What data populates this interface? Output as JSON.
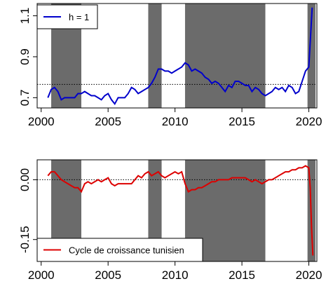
{
  "chart_data": [
    {
      "type": "line",
      "title": "",
      "xlabel": "",
      "ylabel": "",
      "xlim": [
        1999.7,
        2020.6
      ],
      "ylim": [
        0.65,
        1.16
      ],
      "x_ticks": [
        "2000",
        "2005",
        "2010",
        "2015",
        "2020"
      ],
      "x_tick_values": [
        2000,
        2005,
        2010,
        2015,
        2020
      ],
      "y_ticks": [
        "0.7",
        "0.9",
        "1.1"
      ],
      "y_tick_values": [
        0.7,
        0.9,
        1.1
      ],
      "reference_line": 0.765,
      "recession_bands": [
        [
          2000.75,
          2003.0
        ],
        [
          2008.0,
          2009.0
        ],
        [
          2010.75,
          2016.75
        ],
        [
          2019.9,
          2020.5
        ]
      ],
      "legend": {
        "position": "top-left",
        "entries": [
          "h = 1"
        ]
      },
      "colors": {
        "line": "#0000cc",
        "band": "#6b6b6b"
      },
      "series": [
        {
          "name": "h = 1",
          "x": [
            2000.5,
            2000.75,
            2001.0,
            2001.25,
            2001.5,
            2001.75,
            2002.0,
            2002.25,
            2002.5,
            2002.75,
            2003.0,
            2003.25,
            2003.5,
            2003.75,
            2004.0,
            2004.25,
            2004.5,
            2004.75,
            2005.0,
            2005.25,
            2005.5,
            2005.75,
            2006.0,
            2006.25,
            2006.5,
            2006.75,
            2007.0,
            2007.25,
            2007.5,
            2007.75,
            2008.0,
            2008.25,
            2008.5,
            2008.75,
            2009.0,
            2009.25,
            2009.5,
            2009.75,
            2010.0,
            2010.25,
            2010.5,
            2010.75,
            2011.0,
            2011.25,
            2011.5,
            2011.75,
            2012.0,
            2012.25,
            2012.5,
            2012.75,
            2013.0,
            2013.25,
            2013.5,
            2013.75,
            2014.0,
            2014.25,
            2014.5,
            2014.75,
            2015.0,
            2015.25,
            2015.5,
            2015.75,
            2016.0,
            2016.25,
            2016.5,
            2016.75,
            2017.0,
            2017.25,
            2017.5,
            2017.75,
            2018.0,
            2018.25,
            2018.5,
            2018.75,
            2019.0,
            2019.25,
            2019.5,
            2019.75,
            2020.0,
            2020.25
          ],
          "y": [
            0.7,
            0.74,
            0.75,
            0.73,
            0.69,
            0.7,
            0.7,
            0.7,
            0.7,
            0.72,
            0.72,
            0.73,
            0.72,
            0.71,
            0.71,
            0.7,
            0.69,
            0.71,
            0.72,
            0.69,
            0.67,
            0.7,
            0.7,
            0.7,
            0.72,
            0.75,
            0.74,
            0.72,
            0.73,
            0.74,
            0.75,
            0.77,
            0.8,
            0.84,
            0.84,
            0.83,
            0.83,
            0.82,
            0.83,
            0.84,
            0.85,
            0.87,
            0.86,
            0.83,
            0.84,
            0.83,
            0.82,
            0.8,
            0.79,
            0.77,
            0.78,
            0.77,
            0.75,
            0.73,
            0.76,
            0.75,
            0.78,
            0.78,
            0.77,
            0.76,
            0.76,
            0.73,
            0.75,
            0.74,
            0.72,
            0.71,
            0.72,
            0.73,
            0.75,
            0.74,
            0.75,
            0.73,
            0.76,
            0.75,
            0.72,
            0.73,
            0.78,
            0.83,
            0.85,
            1.14
          ]
        }
      ]
    },
    {
      "type": "line",
      "title": "",
      "xlabel": "",
      "ylabel": "",
      "xlim": [
        1999.7,
        2020.6
      ],
      "ylim": [
        -0.205,
        0.05
      ],
      "x_ticks": [
        "2000",
        "2005",
        "2010",
        "2015",
        "2020"
      ],
      "x_tick_values": [
        2000,
        2005,
        2010,
        2015,
        2020
      ],
      "y_ticks": [
        "-0.15",
        "0.00"
      ],
      "y_tick_values": [
        -0.15,
        0.0
      ],
      "reference_line": 0.0,
      "recession_bands": [
        [
          2000.75,
          2003.0
        ],
        [
          2008.0,
          2009.0
        ],
        [
          2010.75,
          2016.75
        ],
        [
          2019.9,
          2020.5
        ]
      ],
      "legend": {
        "position": "bottom-left",
        "entries": [
          "Cycle de croissance tunisien"
        ]
      },
      "colors": {
        "line": "#dd0000",
        "band": "#6b6b6b"
      },
      "series": [
        {
          "name": "Cycle de croissance tunisien",
          "x": [
            2000.5,
            2000.75,
            2001.0,
            2001.25,
            2001.5,
            2001.75,
            2002.0,
            2002.25,
            2002.5,
            2002.75,
            2003.0,
            2003.25,
            2003.5,
            2003.75,
            2004.0,
            2004.25,
            2004.5,
            2004.75,
            2005.0,
            2005.25,
            2005.5,
            2005.75,
            2006.0,
            2006.25,
            2006.5,
            2006.75,
            2007.0,
            2007.25,
            2007.5,
            2007.75,
            2008.0,
            2008.25,
            2008.5,
            2008.75,
            2009.0,
            2009.25,
            2009.5,
            2009.75,
            2010.0,
            2010.25,
            2010.5,
            2010.75,
            2011.0,
            2011.25,
            2011.5,
            2011.75,
            2012.0,
            2012.25,
            2012.5,
            2012.75,
            2013.0,
            2013.25,
            2013.5,
            2013.75,
            2014.0,
            2014.25,
            2014.5,
            2014.75,
            2015.0,
            2015.25,
            2015.5,
            2015.75,
            2016.0,
            2016.25,
            2016.5,
            2016.75,
            2017.0,
            2017.25,
            2017.5,
            2017.75,
            2018.0,
            2018.25,
            2018.5,
            2018.75,
            2019.0,
            2019.25,
            2019.5,
            2019.75,
            2020.0,
            2020.1,
            2020.2,
            2020.3
          ],
          "y": [
            0.01,
            0.02,
            0.02,
            0.01,
            0.0,
            -0.005,
            -0.01,
            -0.015,
            -0.02,
            -0.02,
            -0.03,
            -0.01,
            -0.005,
            -0.01,
            -0.005,
            0.0,
            -0.005,
            0.0,
            0.005,
            -0.01,
            -0.015,
            -0.01,
            -0.01,
            -0.01,
            -0.01,
            -0.01,
            0.0,
            0.01,
            0.005,
            0.015,
            0.02,
            0.01,
            0.015,
            0.02,
            0.01,
            0.005,
            0.01,
            0.015,
            0.02,
            0.015,
            0.02,
            -0.01,
            -0.03,
            -0.025,
            -0.025,
            -0.02,
            -0.02,
            -0.015,
            -0.01,
            -0.005,
            -0.005,
            0.0,
            0.0,
            0.0,
            0.0,
            0.005,
            0.005,
            0.005,
            0.005,
            0.005,
            0.0,
            -0.005,
            0.0,
            -0.005,
            -0.01,
            -0.005,
            0.0,
            0.0,
            0.005,
            0.01,
            0.015,
            0.02,
            0.02,
            0.025,
            0.025,
            0.03,
            0.03,
            0.035,
            0.03,
            -0.02,
            -0.12,
            -0.19
          ]
        }
      ]
    }
  ]
}
